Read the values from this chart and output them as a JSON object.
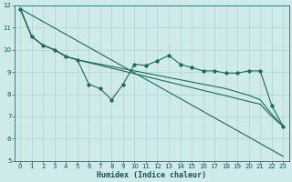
{
  "xlabel": "Humidex (Indice chaleur)",
  "bg_color": "#ceeaea",
  "line_color": "#1a6b5a",
  "grid_color": "#afd4d4",
  "xlim": [
    -0.5,
    23.5
  ],
  "ylim": [
    5,
    12
  ],
  "xticks": [
    0,
    1,
    2,
    3,
    4,
    5,
    6,
    7,
    8,
    9,
    10,
    11,
    12,
    13,
    14,
    15,
    16,
    17,
    18,
    19,
    20,
    21,
    22,
    23
  ],
  "yticks": [
    5,
    6,
    7,
    8,
    9,
    10,
    11,
    12
  ],
  "line_jagged": {
    "x": [
      0,
      1,
      2,
      3,
      4,
      5,
      6,
      7,
      8,
      9,
      10,
      11,
      12,
      13,
      14,
      15,
      16,
      17,
      18,
      19,
      20,
      21,
      22,
      23
    ],
    "y": [
      11.85,
      10.6,
      10.2,
      10.0,
      9.7,
      9.55,
      8.45,
      8.25,
      7.75,
      8.45,
      9.35,
      9.3,
      9.5,
      9.75,
      9.35,
      9.2,
      9.05,
      9.05,
      8.95,
      8.95,
      9.05,
      9.05,
      7.5,
      6.55
    ]
  },
  "line_upper": {
    "x": [
      0,
      1,
      2,
      3,
      4,
      5,
      6,
      7,
      8,
      9,
      10,
      11,
      12,
      13,
      14,
      15,
      16,
      17,
      18,
      19,
      20,
      21,
      22,
      23
    ],
    "y": [
      11.85,
      10.6,
      10.2,
      10.0,
      9.7,
      9.55,
      9.45,
      9.35,
      9.25,
      9.15,
      9.05,
      8.95,
      8.85,
      8.75,
      8.65,
      8.55,
      8.45,
      8.35,
      8.25,
      8.1,
      7.95,
      7.75,
      7.1,
      6.55
    ]
  },
  "line_mid": {
    "x": [
      0,
      1,
      2,
      3,
      4,
      5,
      6,
      7,
      8,
      9,
      10,
      11,
      12,
      13,
      14,
      15,
      16,
      17,
      18,
      19,
      20,
      21,
      22,
      23
    ],
    "y": [
      11.85,
      10.6,
      10.2,
      10.0,
      9.7,
      9.55,
      9.42,
      9.3,
      9.17,
      9.05,
      8.92,
      8.8,
      8.67,
      8.55,
      8.42,
      8.3,
      8.17,
      8.05,
      7.93,
      7.8,
      7.67,
      7.55,
      7.0,
      6.55
    ]
  },
  "line_straight": {
    "x": [
      0,
      23
    ],
    "y": [
      11.85,
      5.2
    ]
  }
}
